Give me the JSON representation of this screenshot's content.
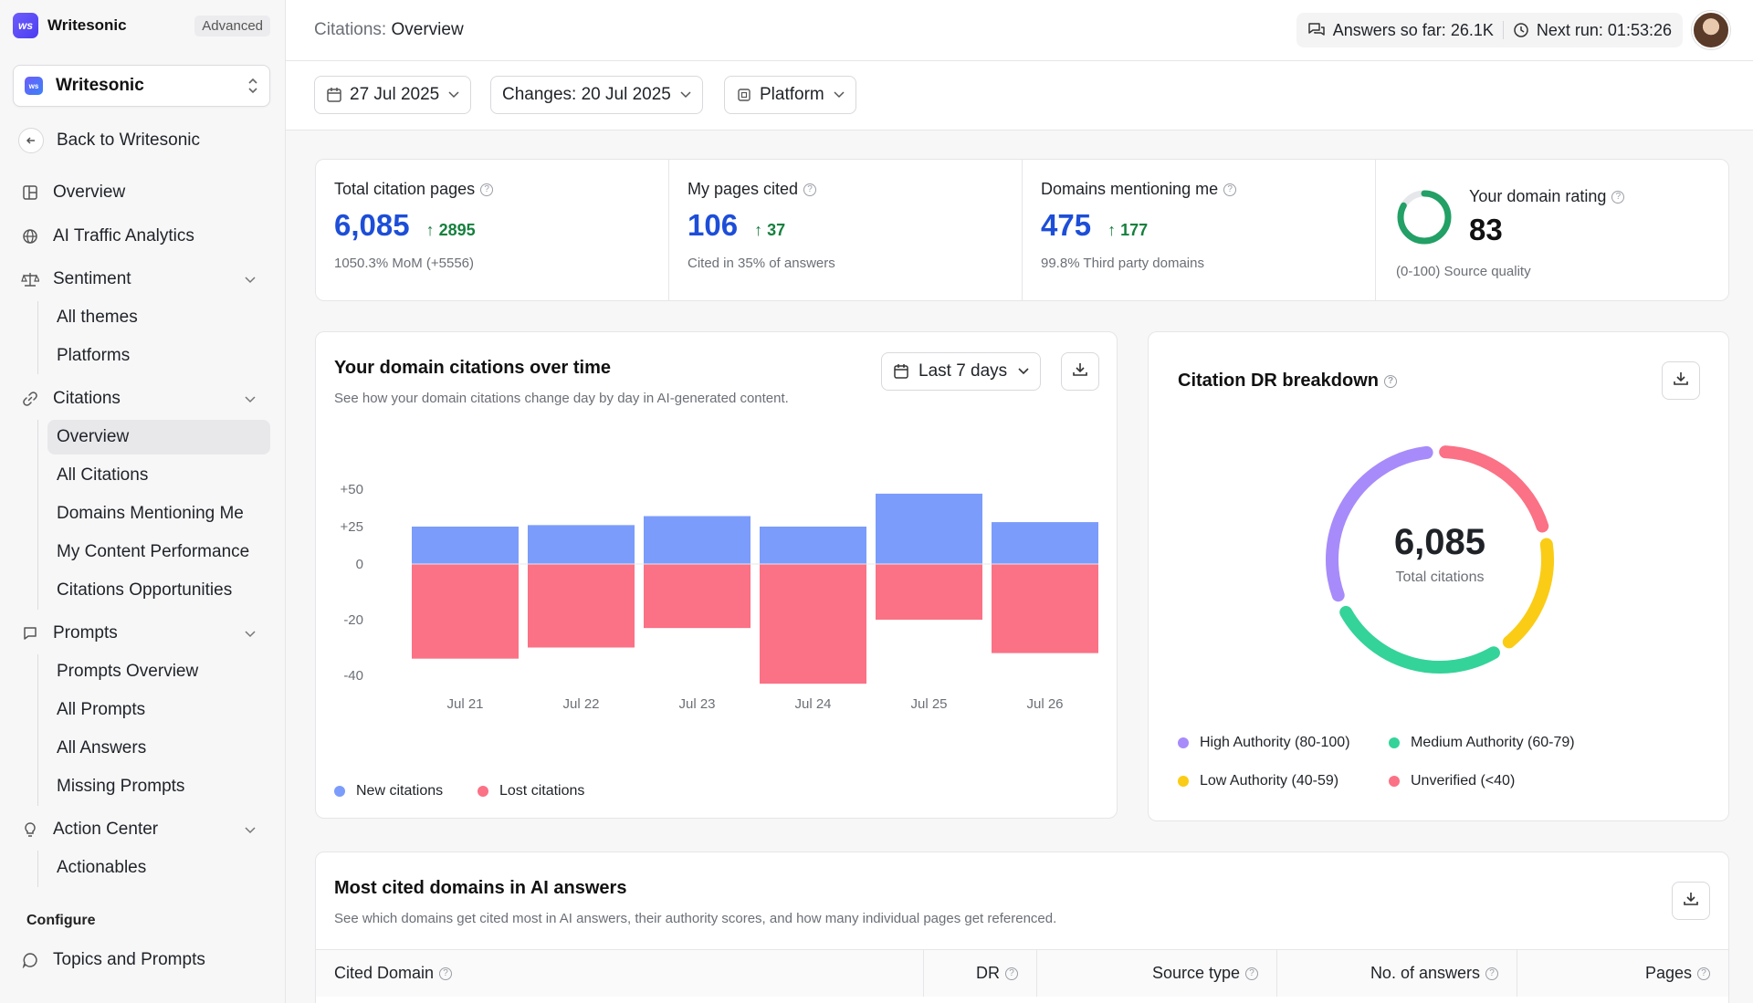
{
  "sidebar": {
    "brand": "Writesonic",
    "plan": "Advanced",
    "workspace": "Writesonic",
    "back": "Back to Writesonic",
    "items": {
      "overview": "Overview",
      "ai_traffic": "AI Traffic Analytics",
      "sentiment": "Sentiment",
      "all_themes": "All themes",
      "platforms": "Platforms",
      "citations": "Citations",
      "citations_overview": "Overview",
      "all_citations": "All Citations",
      "domains_mentioning": "Domains Mentioning Me",
      "content_performance": "My Content Performance",
      "citations_opps": "Citations Opportunities",
      "prompts": "Prompts",
      "prompts_overview": "Prompts Overview",
      "all_prompts": "All Prompts",
      "all_answers": "All Answers",
      "missing_prompts": "Missing Prompts",
      "action_center": "Action Center",
      "actionables": "Actionables"
    },
    "configure_label": "Configure",
    "topics": "Topics and Prompts"
  },
  "header": {
    "crumb_parent": "Citations:",
    "crumb_current": "Overview",
    "answers_label": "Answers so far:",
    "answers_value": "26.1K",
    "next_run_label": "Next run:",
    "next_run_value": "01:53:26"
  },
  "filters": {
    "date": "27 Jul 2025",
    "changes": "Changes: 20 Jul 2025",
    "platform": "Platform"
  },
  "stats": [
    {
      "title": "Total citation pages",
      "value": "6,085",
      "delta": "2895",
      "sub": "1050.3% MoM (+5556)"
    },
    {
      "title": "My pages cited",
      "value": "106",
      "delta": "37",
      "sub": "Cited in 35% of answers"
    },
    {
      "title": "Domains mentioning me",
      "value": "475",
      "delta": "177",
      "sub": "99.8% Third party domains"
    }
  ],
  "rating": {
    "title": "Your domain rating",
    "value": "83",
    "sub": "(0-100) Source quality",
    "score": 83
  },
  "citations_chart": {
    "title": "Your domain citations over time",
    "subtitle": "See how your domain citations change day by day in AI-generated content.",
    "range": "Last 7 days",
    "legend_new": "New citations",
    "legend_lost": "Lost citations"
  },
  "chart_data": [
    {
      "type": "bar",
      "categories": [
        "Jul 21",
        "Jul 22",
        "Jul 23",
        "Jul 24",
        "Jul 25",
        "Jul 26"
      ],
      "series": [
        {
          "name": "New citations",
          "values": [
            25,
            26,
            32,
            25,
            47,
            28
          ]
        },
        {
          "name": "Lost citations",
          "values": [
            -34,
            -30,
            -23,
            -43,
            -20,
            -32
          ]
        }
      ],
      "yticks": [
        "+50",
        "+25",
        "0",
        "-20",
        "-40"
      ],
      "colors": {
        "new": "#7b9cfb",
        "lost": "#fb7185"
      }
    },
    {
      "type": "pie",
      "title": "Citation DR breakdown",
      "center_value": "6,085",
      "center_label": "Total citations",
      "categories": [
        "High Authority (80-100)",
        "Medium Authority (60-79)",
        "Low Authority (40-59)",
        "Unverified (<40)"
      ],
      "values": [
        1900,
        1700,
        1150,
        1335
      ],
      "colors": [
        "#a78bfa",
        "#34d399",
        "#facc15",
        "#fb7185"
      ]
    }
  ],
  "dr": {
    "title": "Citation DR breakdown"
  },
  "domains_table": {
    "title": "Most cited domains in AI answers",
    "subtitle": "See which domains get cited most in AI answers, their authority scores, and how many individual pages get referenced.",
    "columns": [
      "Cited Domain",
      "DR",
      "Source type",
      "No. of answers",
      "Pages"
    ]
  }
}
